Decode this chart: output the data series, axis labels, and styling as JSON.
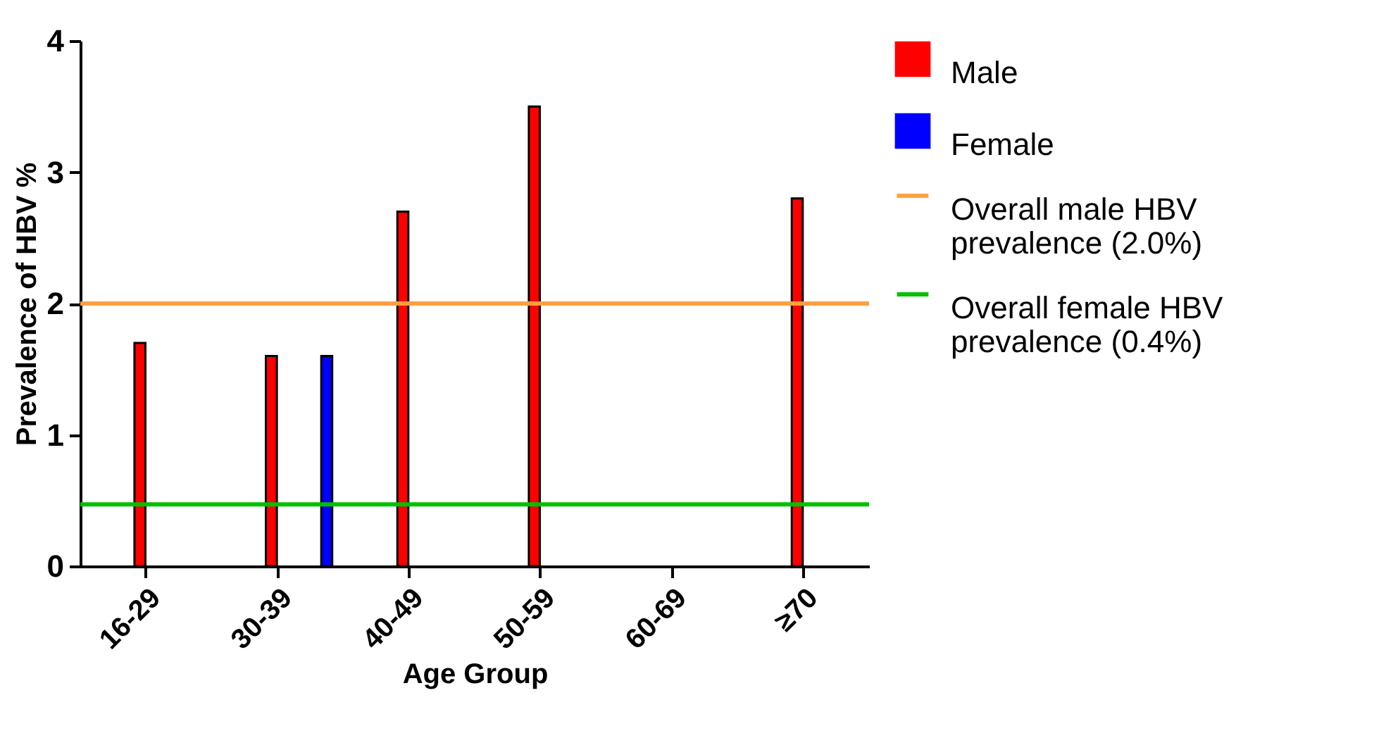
{
  "chart_data": {
    "type": "bar",
    "xlabel": "Age Group",
    "ylabel": "Prevalence of HBV %",
    "categories": [
      "16-29",
      "30-39",
      "40-49",
      "50-59",
      "60-69",
      "≥70"
    ],
    "series": [
      {
        "name": "Male",
        "color": "#ff0000",
        "values": [
          1.7,
          1.6,
          2.7,
          3.5,
          null,
          2.8
        ]
      },
      {
        "name": "Female",
        "color": "#0000ff",
        "values": [
          null,
          1.6,
          null,
          null,
          null,
          null
        ]
      }
    ],
    "ylim": [
      0,
      4
    ],
    "yticks": [
      0,
      1,
      2,
      3,
      4
    ],
    "ref_lines": [
      {
        "axis": "y",
        "value": 2.0,
        "label": "Overall male HBV prevalence (2.0%)",
        "color": "#ffa040"
      },
      {
        "axis": "y",
        "value": 0.47,
        "label": "Overall female HBV prevalence (0.4%)",
        "color": "#00c000"
      }
    ],
    "legend": "top right",
    "grid": false
  }
}
